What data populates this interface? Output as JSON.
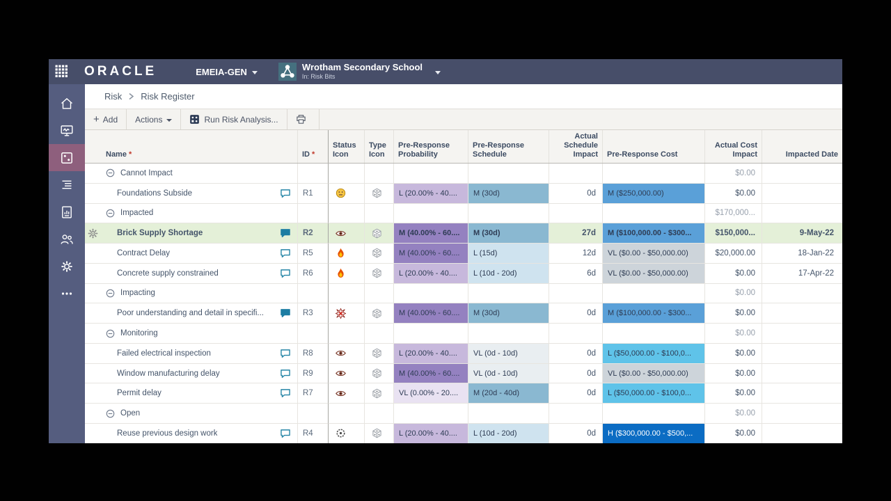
{
  "topbar": {
    "brand": "ORACLE",
    "workspace_label": "EMEIA-GEN",
    "project_name": "Wrotham Secondary School",
    "project_context": "In: Risk Bits"
  },
  "breadcrumb": {
    "section": "Risk",
    "page": "Risk Register"
  },
  "toolbar": {
    "add_label": "Add",
    "actions_label": "Actions",
    "run_risk_label": "Run Risk Analysis...",
    "print_icon": "printer-icon"
  },
  "sidebar": {
    "items": [
      {
        "icon": "home-icon",
        "active": false
      },
      {
        "icon": "dashboard-icon",
        "active": false
      },
      {
        "icon": "dice-risk-icon",
        "active": true
      },
      {
        "icon": "outline-list-icon",
        "active": false
      },
      {
        "icon": "report-chart-icon",
        "active": false
      },
      {
        "icon": "people-icon",
        "active": false
      },
      {
        "icon": "gear-icon",
        "active": false
      },
      {
        "icon": "ellipsis-icon",
        "active": false
      }
    ]
  },
  "colors": {
    "topbar_bg": "#474e69",
    "sidebar_bg": "#555d7f",
    "sidebar_active": "#8e5f7d",
    "selected_row": "#e4f0d8",
    "prob_low": "#c7b8dc",
    "prob_medium": "#9481c0",
    "prob_very_low": "#e9e2f2",
    "sched_medium": "#8ab8d1",
    "sched_low": "#cfe3ef",
    "cost_medium": "#5aa0d8",
    "cost_low": "#5fc3e9",
    "cost_very_low": "#cdd4da",
    "cost_high": "#0b6cc3",
    "comment_teal": "#2585a6"
  },
  "table": {
    "columns": {
      "name": "Name",
      "name_required": "*",
      "id": "ID",
      "id_required": "*",
      "status": "Status Icon",
      "type": "Type Icon",
      "prob": "Pre-Response Probability",
      "sched": "Pre-Response Schedule",
      "sched_impact": "Actual Schedule Impact",
      "cost": "Pre-Response Cost",
      "cost_impact": "Actual Cost Impact",
      "date": "Impacted Date"
    },
    "rows": [
      {
        "group": true,
        "name": "Cannot Impact",
        "actual_cost": "$0.00"
      },
      {
        "name": "Foundations Subside",
        "comment": "outline",
        "id": "R1",
        "status_icon": "face-icon",
        "prob": {
          "level": "L",
          "text": "L (20.00% - 40...."
        },
        "sched": {
          "level": "M",
          "text": "M (30d)"
        },
        "impact": "0d",
        "cost": {
          "level": "M",
          "text": "M ($250,000.00)"
        },
        "actual_cost": "$0.00",
        "date": ""
      },
      {
        "group": true,
        "name": "Impacted",
        "actual_cost": "$170,000..."
      },
      {
        "selected": true,
        "name": "Brick Supply Shortage",
        "comment": "filled",
        "id": "R2",
        "status_icon": "eye-icon",
        "prob": {
          "level": "M",
          "text": "M (40.00% - 60...."
        },
        "sched": {
          "level": "M",
          "text": "M (30d)"
        },
        "impact": "27d",
        "cost": {
          "level": "M",
          "text": "M ($100,000.00 - $300..."
        },
        "actual_cost": "$150,000...",
        "date": "9-May-22"
      },
      {
        "name": "Contract Delay",
        "comment": "outline",
        "id": "R5",
        "status_icon": "flame-icon",
        "prob": {
          "level": "M",
          "text": "M (40.00% - 60...."
        },
        "sched": {
          "level": "L",
          "text": "L (15d)"
        },
        "impact": "12d",
        "cost": {
          "level": "VL",
          "text": "VL ($0.00 - $50,000.00)"
        },
        "actual_cost": "$20,000.00",
        "date": "18-Jan-22"
      },
      {
        "name": "Concrete supply constrained",
        "comment": "outline",
        "id": "R6",
        "status_icon": "flame-icon",
        "prob": {
          "level": "L",
          "text": "L (20.00% - 40...."
        },
        "sched": {
          "level": "L",
          "text": "L (10d - 20d)"
        },
        "impact": "6d",
        "cost": {
          "level": "VL",
          "text": "VL ($0.00 - $50,000.00)"
        },
        "actual_cost": "$0.00",
        "date": "17-Apr-22"
      },
      {
        "group": true,
        "name": "Impacting",
        "actual_cost": "$0.00"
      },
      {
        "name": "Poor understanding and detail in specifi...",
        "comment": "filled",
        "id": "R3",
        "status_icon": "burst-icon",
        "prob": {
          "level": "M",
          "text": "M (40.00% - 60...."
        },
        "sched": {
          "level": "M",
          "text": "M (30d)"
        },
        "impact": "0d",
        "cost": {
          "level": "M",
          "text": "M ($100,000.00 - $300..."
        },
        "actual_cost": "$0.00",
        "date": ""
      },
      {
        "group": true,
        "name": "Monitoring",
        "actual_cost": "$0.00"
      },
      {
        "name": "Failed electrical inspection",
        "comment": "outline",
        "id": "R8",
        "status_icon": "eye-icon",
        "prob": {
          "level": "L",
          "text": "L (20.00% - 40...."
        },
        "sched": {
          "level": "VL",
          "text": "VL (0d - 10d)"
        },
        "impact": "0d",
        "cost": {
          "level": "L",
          "text": "L ($50,000.00 - $100,0..."
        },
        "actual_cost": "$0.00",
        "date": ""
      },
      {
        "name": "Window manufacturing delay",
        "comment": "outline",
        "id": "R9",
        "status_icon": "eye-icon",
        "prob": {
          "level": "M",
          "text": "M (40.00% - 60...."
        },
        "sched": {
          "level": "VL",
          "text": "VL (0d - 10d)"
        },
        "impact": "0d",
        "cost": {
          "level": "VL",
          "text": "VL ($0.00 - $50,000.00)"
        },
        "actual_cost": "$0.00",
        "date": ""
      },
      {
        "name": "Permit delay",
        "comment": "outline",
        "id": "R7",
        "status_icon": "eye-icon",
        "prob": {
          "level": "VL",
          "text": "VL (0.00% - 20...."
        },
        "sched": {
          "level": "M",
          "text": "M (20d - 40d)"
        },
        "impact": "0d",
        "cost": {
          "level": "L",
          "text": "L ($50,000.00 - $100,0..."
        },
        "actual_cost": "$0.00",
        "date": ""
      },
      {
        "group": true,
        "name": "Open",
        "actual_cost": "$0.00"
      },
      {
        "name": "Reuse previous design work",
        "comment": "outline",
        "id": "R4",
        "status_icon": "gear-dial-icon",
        "prob": {
          "level": "L",
          "text": "L (20.00% - 40...."
        },
        "sched": {
          "level": "L",
          "text": "L (10d - 20d)"
        },
        "impact": "0d",
        "cost": {
          "level": "H",
          "text": "H ($300,000.00 - $500,..."
        },
        "actual_cost": "$0.00",
        "date": ""
      }
    ]
  }
}
